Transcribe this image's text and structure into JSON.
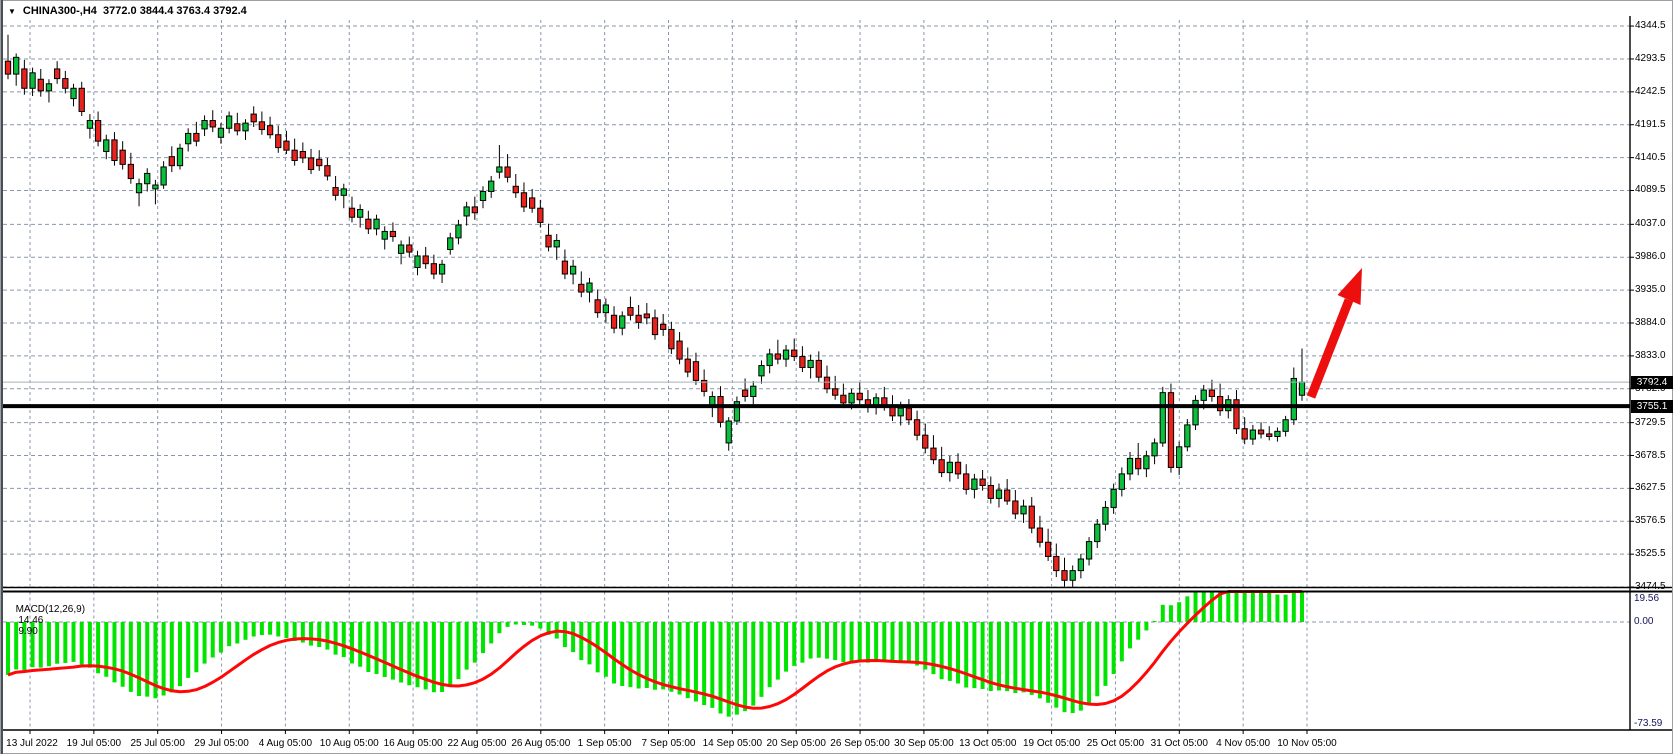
{
  "header": {
    "dropdown_icon": "▼",
    "symbol": "CHINA300-,H4",
    "ohlc_readout": "3772.0 3844.4 3763.4 3792.4"
  },
  "colors": {
    "background": "#ffffff",
    "grid": "#8a97ab",
    "bull_candle": "#0abf3c",
    "bear_candle": "#e8231d",
    "candle_border": "#000000",
    "macd_histogram": "#00e400",
    "macd_signal": "#ff0707",
    "arrow": "#ed0e0e",
    "support_line": "#000000",
    "bid_line": "#a8b0b8",
    "price_tag_bg": "#000000",
    "price_tag_text": "#ffffff"
  },
  "price_axis": {
    "ticks": [
      "4344.5",
      "4293.5",
      "4242.5",
      "4191.5",
      "4140.5",
      "4089.5",
      "4037.0",
      "3986.0",
      "3935.0",
      "3884.0",
      "3833.0",
      "3782.0",
      "3729.5",
      "3678.5",
      "3627.5",
      "3576.5",
      "3525.5",
      "3474.5"
    ]
  },
  "price_markers": {
    "bid": "3792.4",
    "line": "3755.1"
  },
  "time_axis": {
    "labels": [
      "13 Jul 2022",
      "19 Jul 05:00",
      "25 Jul 05:00",
      "29 Jul 05:00",
      "4 Aug 05:00",
      "10 Aug 05:00",
      "16 Aug 05:00",
      "22 Aug 05:00",
      "26 Aug 05:00",
      "1 Sep 05:00",
      "7 Sep 05:00",
      "14 Sep 05:00",
      "20 Sep 05:00",
      "26 Sep 05:00",
      "30 Sep 05:00",
      "13 Oct 05:00",
      "19 Oct 05:00",
      "25 Oct 05:00",
      "31 Oct 05:00",
      "4 Nov 05:00",
      "10 Nov 05:00"
    ]
  },
  "macd_panel": {
    "label": "MACD(12,26,9)",
    "value_main": "14.46",
    "value_signal": "9.90",
    "ticks": [
      "19.56",
      "0.00",
      "-73.59"
    ]
  },
  "chart_data": {
    "type": "candlestick",
    "symbol": "CHINA300-",
    "timeframe": "H4",
    "title": "CHINA300-,H4 3772.0 3844.4 3763.4 3792.4",
    "x_range_labels": [
      "13 Jul 2022",
      "10 Nov 05:00"
    ],
    "y_axis_visible_range": [
      3474.5,
      4344.5
    ],
    "ohlc_format": [
      "open",
      "high",
      "low",
      "close"
    ],
    "horizontal_lines": [
      {
        "price": 3755.1,
        "style": "solid-thick",
        "color": "#000000"
      },
      {
        "price": 3792.4,
        "style": "thin",
        "color": "#a8b0b8",
        "role": "current-bid"
      }
    ],
    "annotations": [
      {
        "type": "arrow",
        "direction": "up-right",
        "color": "#ed0e0e"
      }
    ],
    "indicators": [
      {
        "name": "MACD",
        "params": [
          12,
          26,
          9
        ],
        "display": "histogram+signal",
        "current_main": 14.46,
        "current_signal": 9.9,
        "axis_range": [
          -73.59,
          19.56
        ]
      }
    ],
    "candles": [
      [
        4290,
        4331,
        4262,
        4270
      ],
      [
        4270,
        4302,
        4252,
        4296
      ],
      [
        4278,
        4292,
        4238,
        4248
      ],
      [
        4248,
        4280,
        4236,
        4272
      ],
      [
        4262,
        4278,
        4235,
        4244
      ],
      [
        4244,
        4262,
        4226,
        4255
      ],
      [
        4278,
        4290,
        4255,
        4263
      ],
      [
        4263,
        4275,
        4240,
        4248
      ],
      [
        4232,
        4255,
        4220,
        4248
      ],
      [
        4248,
        4258,
        4205,
        4212
      ],
      [
        4186,
        4208,
        4170,
        4198
      ],
      [
        4198,
        4212,
        4158,
        4166
      ],
      [
        4150,
        4176,
        4138,
        4168
      ],
      [
        4168,
        4180,
        4128,
        4136
      ],
      [
        4152,
        4166,
        4122,
        4130
      ],
      [
        4130,
        4148,
        4100,
        4108
      ],
      [
        4086,
        4108,
        4065,
        4100
      ],
      [
        4100,
        4124,
        4088,
        4116
      ],
      [
        4092,
        4106,
        4068,
        4098
      ],
      [
        4098,
        4135,
        4092,
        4126
      ],
      [
        4142,
        4158,
        4118,
        4128
      ],
      [
        4128,
        4162,
        4122,
        4155
      ],
      [
        4162,
        4186,
        4150,
        4178
      ],
      [
        4178,
        4196,
        4158,
        4166
      ],
      [
        4185,
        4206,
        4174,
        4198
      ],
      [
        4198,
        4214,
        4180,
        4188
      ],
      [
        4172,
        4194,
        4162,
        4186
      ],
      [
        4186,
        4212,
        4178,
        4205
      ],
      [
        4193,
        4210,
        4175,
        4182
      ],
      [
        4182,
        4200,
        4168,
        4194
      ],
      [
        4208,
        4220,
        4188,
        4196
      ],
      [
        4196,
        4212,
        4176,
        4184
      ],
      [
        4190,
        4204,
        4170,
        4176
      ],
      [
        4176,
        4190,
        4148,
        4156
      ],
      [
        4166,
        4182,
        4146,
        4152
      ],
      [
        4152,
        4170,
        4128,
        4136
      ],
      [
        4150,
        4164,
        4132,
        4140
      ],
      [
        4140,
        4154,
        4115,
        4122
      ],
      [
        4138,
        4152,
        4120,
        4128
      ],
      [
        4128,
        4140,
        4105,
        4112
      ],
      [
        4094,
        4112,
        4074,
        4082
      ],
      [
        4082,
        4100,
        4062,
        4092
      ],
      [
        4062,
        4080,
        4040,
        4048
      ],
      [
        4048,
        4068,
        4032,
        4060
      ],
      [
        4045,
        4058,
        4022,
        4030
      ],
      [
        4030,
        4052,
        4020,
        4045
      ],
      [
        4014,
        4034,
        3998,
        4026
      ],
      [
        4026,
        4040,
        4010,
        4018
      ],
      [
        3992,
        4012,
        3975,
        4005
      ],
      [
        4005,
        4018,
        3986,
        3994
      ],
      [
        3970,
        3996,
        3958,
        3988
      ],
      [
        3988,
        4002,
        3968,
        3976
      ],
      [
        3976,
        3990,
        3952,
        3960
      ],
      [
        3960,
        3982,
        3946,
        3975
      ],
      [
        3998,
        4024,
        3990,
        4016
      ],
      [
        4016,
        4044,
        4006,
        4036
      ],
      [
        4050,
        4072,
        4035,
        4064
      ],
      [
        4064,
        4080,
        4044,
        4055
      ],
      [
        4074,
        4096,
        4062,
        4088
      ],
      [
        4088,
        4112,
        4078,
        4104
      ],
      [
        4118,
        4160,
        4108,
        4126
      ],
      [
        4126,
        4146,
        4102,
        4110
      ],
      [
        4096,
        4115,
        4078,
        4086
      ],
      [
        4086,
        4102,
        4056,
        4064
      ],
      [
        4078,
        4092,
        4055,
        4062
      ],
      [
        4062,
        4075,
        4032,
        4040
      ],
      [
        4020,
        4038,
        3995,
        4002
      ],
      [
        4002,
        4022,
        3982,
        4012
      ],
      [
        3980,
        3998,
        3952,
        3960
      ],
      [
        3960,
        3982,
        3944,
        3972
      ],
      [
        3944,
        3964,
        3924,
        3932
      ],
      [
        3932,
        3954,
        3916,
        3946
      ],
      [
        3920,
        3936,
        3892,
        3900
      ],
      [
        3900,
        3922,
        3885,
        3912
      ],
      [
        3896,
        3910,
        3868,
        3876
      ],
      [
        3876,
        3902,
        3865,
        3895
      ],
      [
        3908,
        3925,
        3888,
        3896
      ],
      [
        3896,
        3912,
        3875,
        3885
      ],
      [
        3898,
        3915,
        3882,
        3892
      ],
      [
        3892,
        3905,
        3858,
        3866
      ],
      [
        3882,
        3898,
        3864,
        3874
      ],
      [
        3874,
        3886,
        3836,
        3844
      ],
      [
        3856,
        3870,
        3820,
        3828
      ],
      [
        3828,
        3846,
        3800,
        3808
      ],
      [
        3824,
        3838,
        3788,
        3795
      ],
      [
        3795,
        3812,
        3770,
        3778
      ],
      [
        3756,
        3778,
        3738,
        3770
      ],
      [
        3770,
        3786,
        3722,
        3730
      ],
      [
        3698,
        3738,
        3686,
        3732
      ],
      [
        3732,
        3770,
        3726,
        3762
      ],
      [
        3780,
        3798,
        3762,
        3770
      ],
      [
        3770,
        3794,
        3758,
        3786
      ],
      [
        3802,
        3826,
        3790,
        3818
      ],
      [
        3818,
        3844,
        3806,
        3836
      ],
      [
        3836,
        3858,
        3820,
        3828
      ],
      [
        3828,
        3850,
        3816,
        3842
      ],
      [
        3842,
        3860,
        3825,
        3832
      ],
      [
        3832,
        3848,
        3808,
        3815
      ],
      [
        3815,
        3835,
        3798,
        3826
      ],
      [
        3826,
        3840,
        3792,
        3800
      ],
      [
        3800,
        3818,
        3775,
        3782
      ],
      [
        3782,
        3802,
        3765,
        3772
      ],
      [
        3772,
        3790,
        3752,
        3760
      ],
      [
        3760,
        3782,
        3750,
        3775
      ],
      [
        3775,
        3792,
        3758,
        3765
      ],
      [
        3765,
        3780,
        3745,
        3755
      ],
      [
        3755,
        3775,
        3742,
        3768
      ],
      [
        3768,
        3785,
        3748,
        3756
      ],
      [
        3756,
        3772,
        3732,
        3740
      ],
      [
        3740,
        3762,
        3725,
        3752
      ],
      [
        3752,
        3766,
        3726,
        3734
      ],
      [
        3734,
        3748,
        3702,
        3710
      ],
      [
        3710,
        3728,
        3682,
        3690
      ],
      [
        3690,
        3710,
        3665,
        3672
      ],
      [
        3672,
        3692,
        3645,
        3652
      ],
      [
        3652,
        3678,
        3638,
        3668
      ],
      [
        3668,
        3682,
        3642,
        3650
      ],
      [
        3650,
        3665,
        3618,
        3626
      ],
      [
        3626,
        3650,
        3612,
        3642
      ],
      [
        3642,
        3656,
        3624,
        3632
      ],
      [
        3632,
        3646,
        3604,
        3612
      ],
      [
        3612,
        3635,
        3598,
        3625
      ],
      [
        3625,
        3642,
        3602,
        3608
      ],
      [
        3608,
        3625,
        3580,
        3588
      ],
      [
        3588,
        3610,
        3574,
        3600
      ],
      [
        3600,
        3614,
        3558,
        3566
      ],
      [
        3566,
        3585,
        3536,
        3544
      ],
      [
        3544,
        3565,
        3515,
        3522
      ],
      [
        3522,
        3542,
        3490,
        3500
      ],
      [
        3500,
        3520,
        3475,
        3485
      ],
      [
        3485,
        3508,
        3474,
        3500
      ],
      [
        3500,
        3526,
        3488,
        3518
      ],
      [
        3518,
        3552,
        3508,
        3545
      ],
      [
        3545,
        3580,
        3535,
        3572
      ],
      [
        3572,
        3608,
        3562,
        3598
      ],
      [
        3598,
        3635,
        3588,
        3626
      ],
      [
        3626,
        3660,
        3615,
        3650
      ],
      [
        3650,
        3684,
        3640,
        3674
      ],
      [
        3674,
        3698,
        3648,
        3658
      ],
      [
        3658,
        3686,
        3645,
        3678
      ],
      [
        3678,
        3705,
        3665,
        3698
      ],
      [
        3698,
        3785,
        3692,
        3776
      ],
      [
        3776,
        3790,
        3652,
        3660
      ],
      [
        3660,
        3700,
        3648,
        3692
      ],
      [
        3692,
        3735,
        3685,
        3726
      ],
      [
        3726,
        3772,
        3718,
        3764
      ],
      [
        3764,
        3788,
        3750,
        3780
      ],
      [
        3780,
        3796,
        3762,
        3770
      ],
      [
        3770,
        3790,
        3740,
        3748
      ],
      [
        3748,
        3772,
        3736,
        3765
      ],
      [
        3765,
        3780,
        3712,
        3720
      ],
      [
        3720,
        3738,
        3696,
        3704
      ],
      [
        3704,
        3726,
        3695,
        3718
      ],
      [
        3718,
        3730,
        3705,
        3712
      ],
      [
        3712,
        3724,
        3702,
        3708
      ],
      [
        3708,
        3722,
        3700,
        3716
      ],
      [
        3716,
        3740,
        3708,
        3734
      ],
      [
        3734,
        3815,
        3726,
        3798
      ],
      [
        3772,
        3844.4,
        3763.4,
        3792.4
      ]
    ]
  }
}
